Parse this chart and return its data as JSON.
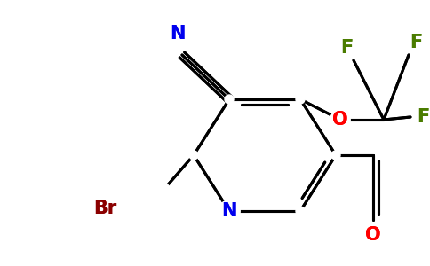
{
  "background_color": "#ffffff",
  "figure_width": 4.84,
  "figure_height": 3.0,
  "dpi": 100,
  "bond_lw": 2.2,
  "bond_color": "#000000",
  "colors": {
    "N": "#0000ee",
    "O": "#ff0000",
    "F": "#4a7c00",
    "Br": "#8b0000",
    "C": "#000000"
  },
  "font_sizes": {
    "N": 15,
    "O": 15,
    "F": 15,
    "Br": 15,
    "cyano_N": 15
  }
}
